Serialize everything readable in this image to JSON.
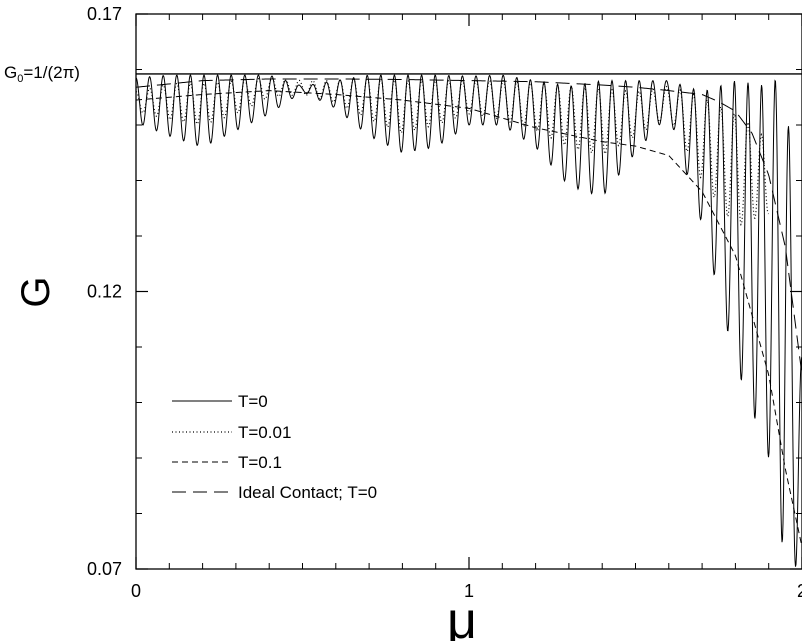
{
  "chart_data": {
    "type": "line",
    "title": "",
    "xlabel": "μ",
    "ylabel": "G",
    "xlim": [
      0,
      2
    ],
    "ylim": [
      0.07,
      0.17
    ],
    "grid": false,
    "legend_position": "bottom-left",
    "x_ticks": [
      {
        "value": 0,
        "label": "0"
      },
      {
        "value": 1,
        "label": "1"
      },
      {
        "value": 2,
        "label": "2"
      }
    ],
    "y_ticks": [
      {
        "value": 0.07,
        "label": "0.07"
      },
      {
        "value": 0.12,
        "label": "0.12"
      },
      {
        "value": 0.17,
        "label": "0.17"
      }
    ],
    "reference_line": {
      "value": 0.1592,
      "label_main": "G",
      "label_sub": "0",
      "label_rest": "=1/(2π)"
    },
    "series": [
      {
        "name": "T=0",
        "style": "solid",
        "x": [
          0,
          0.1,
          0.2,
          0.3,
          0.4,
          0.5,
          0.6,
          0.7,
          0.8,
          0.9,
          1.0,
          1.1,
          1.2,
          1.3,
          1.4,
          1.5,
          1.6,
          1.7,
          1.8,
          1.9,
          1.95,
          2.0
        ],
        "y_max": [
          0.1585,
          0.159,
          0.159,
          0.159,
          0.159,
          0.157,
          0.158,
          0.159,
          0.159,
          0.159,
          0.1588,
          0.159,
          0.158,
          0.157,
          0.158,
          0.158,
          0.158,
          0.156,
          0.158,
          0.157,
          0.16,
          0.108
        ],
        "y_min": [
          0.1505,
          0.148,
          0.146,
          0.149,
          0.152,
          0.156,
          0.153,
          0.148,
          0.145,
          0.146,
          0.15,
          0.15,
          0.146,
          0.139,
          0.137,
          0.145,
          0.152,
          0.132,
          0.107,
          0.09,
          0.071,
          0.07
        ]
      },
      {
        "name": "T=0.01",
        "style": "dotted",
        "x": [
          0,
          0.1,
          0.2,
          0.3,
          0.4,
          0.5,
          0.6,
          0.7,
          0.8,
          0.9,
          1.0,
          1.1,
          1.2,
          1.3,
          1.4,
          1.5,
          1.6,
          1.7,
          1.8,
          1.85,
          1.9
        ],
        "y_max": [
          0.156,
          0.1575,
          0.1575,
          0.158,
          0.1585,
          0.158,
          0.158,
          0.1585,
          0.158,
          0.158,
          0.158,
          0.158,
          0.1575,
          0.157,
          0.1565,
          0.156,
          0.157,
          0.155,
          0.152,
          0.15,
          0.147
        ],
        "y_min": [
          0.1525,
          0.151,
          0.15,
          0.152,
          0.155,
          0.1555,
          0.154,
          0.151,
          0.1485,
          0.15,
          0.152,
          0.151,
          0.149,
          0.146,
          0.1445,
          0.148,
          0.1515,
          0.14,
          0.1315,
          0.133,
          0.134
        ]
      },
      {
        "name": "T=0.1",
        "style": "dashed",
        "x": [
          0,
          0.2,
          0.4,
          0.6,
          0.8,
          1.0,
          1.2,
          1.4,
          1.5,
          1.6,
          1.7,
          1.8,
          1.9,
          1.95,
          2.0
        ],
        "y": [
          0.1545,
          0.1555,
          0.1562,
          0.1555,
          0.1545,
          0.153,
          0.1495,
          0.147,
          0.1462,
          0.1445,
          0.138,
          0.1265,
          0.105,
          0.088,
          0.074
        ]
      },
      {
        "name": "Ideal Contact; T=0",
        "style": "longdash",
        "x": [
          0,
          0.2,
          0.4,
          0.6,
          0.8,
          1.0,
          1.2,
          1.4,
          1.5,
          1.6,
          1.7,
          1.75,
          1.8,
          1.85,
          1.9,
          1.95,
          2.0
        ],
        "y": [
          0.1568,
          0.158,
          0.1583,
          0.1583,
          0.1582,
          0.158,
          0.1578,
          0.1572,
          0.1568,
          0.1562,
          0.1555,
          0.1542,
          0.1525,
          0.1485,
          0.141,
          0.128,
          0.105
        ]
      }
    ]
  }
}
